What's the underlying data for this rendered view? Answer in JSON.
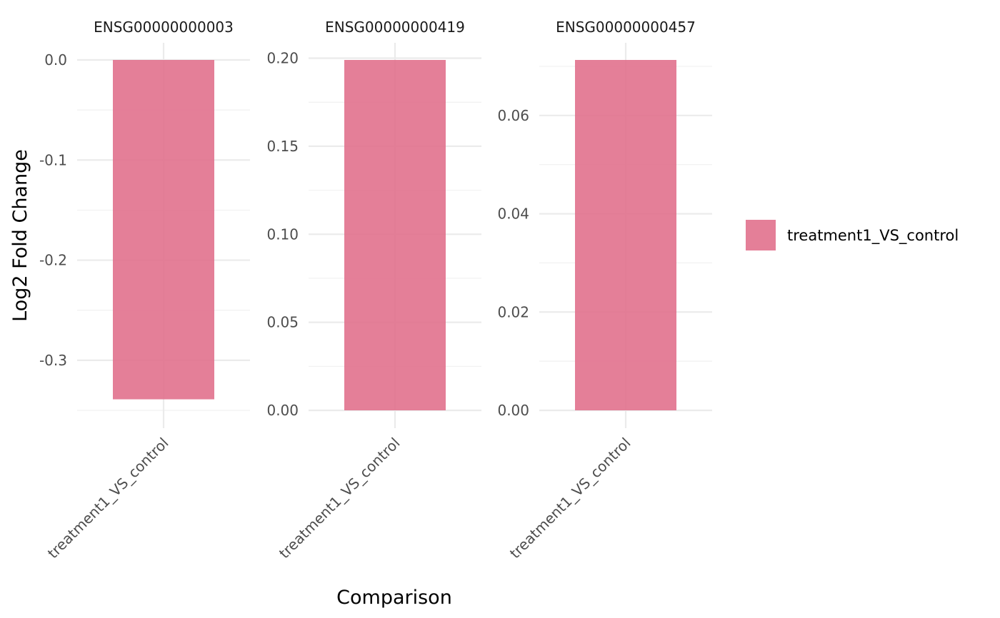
{
  "chart_data": {
    "type": "bar",
    "facet": "gene",
    "xlabel": "Comparison",
    "ylabel": "Log2 Fold Change",
    "grid": true,
    "legend_position": "right",
    "legend": [
      {
        "name": "treatment1_VS_control",
        "color": "#e06d8a"
      }
    ],
    "bar_color": "#e06d8a",
    "panels": [
      {
        "title": "ENSG00000000003",
        "categories": [
          "treatment1_VS_control"
        ],
        "values": [
          -0.339
        ],
        "ylim": [
          -0.35,
          0.0
        ],
        "yticks": [
          0.0,
          -0.1,
          -0.2,
          -0.3
        ],
        "ytick_labels": [
          "0.0",
          "-0.1",
          "-0.2",
          "-0.3"
        ]
      },
      {
        "title": "ENSG00000000419",
        "categories": [
          "treatment1_VS_control"
        ],
        "values": [
          0.199
        ],
        "ylim": [
          0.0,
          0.199
        ],
        "yticks": [
          0.0,
          0.05,
          0.1,
          0.15,
          0.2
        ],
        "ytick_labels": [
          "0.00",
          "0.05",
          "0.10",
          "0.15",
          "0.20"
        ]
      },
      {
        "title": "ENSG00000000457",
        "categories": [
          "treatment1_VS_control"
        ],
        "values": [
          0.0713
        ],
        "ylim": [
          0.0,
          0.0713
        ],
        "yticks": [
          0.0,
          0.02,
          0.04,
          0.06
        ],
        "ytick_labels": [
          "0.00",
          "0.02",
          "0.04",
          "0.06"
        ]
      }
    ]
  }
}
